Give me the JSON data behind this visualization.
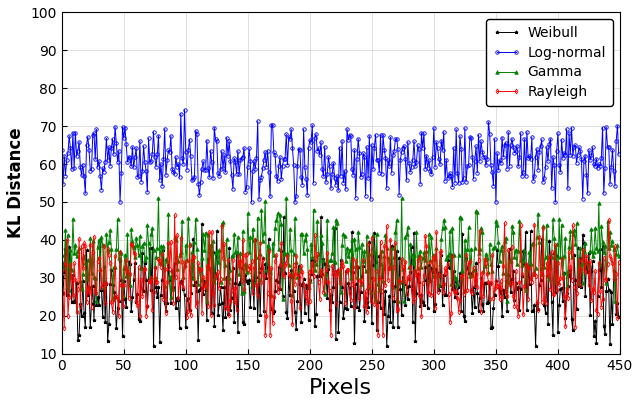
{
  "title": "",
  "xlabel": "Pixels",
  "ylabel": "KL Distance",
  "xlim": [
    0,
    450
  ],
  "ylim": [
    10,
    100
  ],
  "xticks": [
    0,
    50,
    100,
    150,
    200,
    250,
    300,
    350,
    400,
    450
  ],
  "yticks": [
    10,
    20,
    30,
    40,
    50,
    60,
    70,
    80,
    90,
    100
  ],
  "n_points": 450,
  "weibull": {
    "color": "black",
    "marker": "*",
    "label": "Weibull",
    "mean": 27,
    "std": 7,
    "min": 12,
    "max": 46
  },
  "lognormal": {
    "color": "blue",
    "marker": "o",
    "label": "Log-normal",
    "mean": 61,
    "std": 5,
    "min": 50,
    "max": 76
  },
  "gamma": {
    "color": "green",
    "marker": "^",
    "label": "Gamma",
    "mean": 36,
    "std": 6,
    "min": 24,
    "max": 51
  },
  "rayleigh": {
    "color": "red",
    "marker": "d",
    "label": "Rayleigh",
    "mean": 30,
    "std": 6,
    "min": 15,
    "max": 50
  },
  "seed": 42,
  "figsize": [
    6.4,
    4.05
  ],
  "dpi": 100,
  "legend_loc": "upper right",
  "grid": true,
  "linewidth": 0.7,
  "markersize": 2.5
}
